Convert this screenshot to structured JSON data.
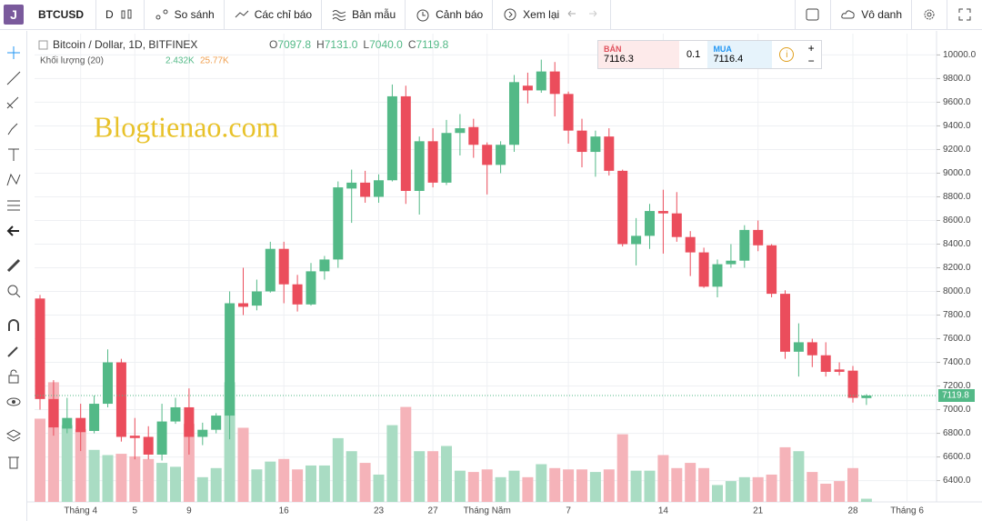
{
  "toolbar": {
    "logo": "J",
    "symbol": "BTCUSD",
    "interval": "D",
    "compare": "So sánh",
    "indicators": "Các chỉ báo",
    "templates": "Bản mẫu",
    "alerts": "Cảnh báo",
    "replay": "Xem lại",
    "user": "Vô danh"
  },
  "watermark": "Blogtienao.com",
  "order_panel": {
    "sell_label": "BÁN",
    "sell_price": "7116.3",
    "spread": "0.1",
    "buy_label": "MUA",
    "buy_price": "7116.4",
    "info": "i"
  },
  "chart_data": {
    "type": "candlestick",
    "title": "Bitcoin / Dollar, 1D, BITFINEX",
    "legend_values": [
      {
        "letter": "O",
        "label": "7097.8"
      },
      {
        "letter": "H",
        "label": "7131.0"
      },
      {
        "letter": "L",
        "label": "7040.0"
      },
      {
        "letter": "C",
        "label": "7119.8"
      }
    ],
    "categories": [
      null,
      null,
      null,
      "Tháng 4",
      null,
      null,
      null,
      "5",
      null,
      null,
      null,
      "9",
      null,
      null,
      null,
      null,
      null,
      null,
      "16",
      null,
      null,
      null,
      null,
      null,
      null,
      "23",
      null,
      null,
      null,
      "27",
      null,
      null,
      null,
      "Tháng Năm",
      null,
      null,
      null,
      null,
      null,
      "7",
      null,
      null,
      null,
      null,
      null,
      null,
      "14",
      null,
      null,
      null,
      null,
      null,
      null,
      "21",
      null,
      null,
      null,
      null,
      null,
      null,
      "28",
      null,
      null,
      null,
      "Tháng 6"
    ],
    "open": [
      7940,
      7090,
      6840,
      6930,
      6820,
      7050,
      7400,
      6780,
      6770,
      6620,
      6900,
      7020,
      6770,
      6830,
      6950,
      7900,
      7880,
      8000,
      8360,
      8060,
      7890,
      8170,
      8270,
      8870,
      8920,
      8800,
      8940,
      9650,
      8850,
      9270,
      8920,
      9340,
      9390,
      9240,
      9070,
      9240,
      9740,
      9700,
      9860,
      9670,
      9360,
      9180,
      9310,
      9020,
      8400,
      8470,
      8680,
      8660,
      8460,
      8330,
      8040,
      8230,
      8260,
      8520,
      8390,
      7980,
      7490,
      7570,
      7460,
      7340,
      7330,
      7097.8,
      null,
      null,
      null
    ],
    "high": [
      7970,
      7250,
      7100,
      7050,
      7120,
      7510,
      7430,
      6930,
      6860,
      7050,
      7100,
      7180,
      6890,
      6970,
      8000,
      8200,
      8100,
      8420,
      8420,
      8140,
      8240,
      8300,
      8930,
      9030,
      9020,
      8990,
      9750,
      9740,
      9310,
      9380,
      9450,
      9500,
      9460,
      9260,
      9270,
      9830,
      9850,
      9960,
      9940,
      9690,
      9460,
      9360,
      9380,
      9030,
      8620,
      8740,
      8860,
      8840,
      8510,
      8370,
      8270,
      8400,
      8560,
      8600,
      8400,
      8010,
      7730,
      7600,
      7570,
      7400,
      7370,
      7131.0,
      null,
      null,
      null
    ],
    "low": [
      7000,
      6780,
      6800,
      6650,
      6800,
      7020,
      6730,
      6580,
      6580,
      6570,
      6880,
      6620,
      6700,
      6800,
      6750,
      7800,
      7840,
      7990,
      7900,
      7830,
      7880,
      8100,
      8200,
      8580,
      8750,
      8750,
      8930,
      8740,
      8650,
      8880,
      8900,
      9150,
      9130,
      8820,
      9000,
      9180,
      9590,
      9680,
      9480,
      9250,
      9050,
      8970,
      8980,
      8380,
      8220,
      8360,
      8320,
      8420,
      8130,
      8030,
      7950,
      8200,
      8200,
      8340,
      7950,
      7430,
      7280,
      7360,
      7280,
      7290,
      7060,
      7040.0,
      null,
      null,
      null
    ],
    "close": [
      7090,
      6850,
      6930,
      6810,
      7050,
      7400,
      6770,
      6760,
      6620,
      6900,
      7020,
      6770,
      6830,
      6950,
      7900,
      7870,
      8000,
      8360,
      8060,
      7890,
      8170,
      8270,
      8880,
      8920,
      8800,
      8940,
      9650,
      8850,
      9270,
      8920,
      9340,
      9380,
      9240,
      9070,
      9240,
      9770,
      9700,
      9860,
      9670,
      9360,
      9180,
      9310,
      9020,
      8400,
      8470,
      8680,
      8660,
      8460,
      8330,
      8040,
      8230,
      8260,
      8520,
      8390,
      7980,
      7490,
      7570,
      7460,
      7320,
      7320,
      7100,
      7119.8,
      null,
      null,
      null
    ],
    "up_color": "#53b987",
    "down_color": "#eb4d5c",
    "ylim": [
      6220,
      10180
    ],
    "yticks": [
      {
        "value": 6400,
        "label": "6400.0"
      },
      {
        "value": 6600,
        "label": "6600.0"
      },
      {
        "value": 6800,
        "label": "6800.0"
      },
      {
        "value": 7000,
        "label": "7000.0"
      },
      {
        "value": 7200,
        "label": "7200.0"
      },
      {
        "value": 7400,
        "label": "7400.0"
      },
      {
        "value": 7600,
        "label": "7600.0"
      },
      {
        "value": 7800,
        "label": "7800.0"
      },
      {
        "value": 8000,
        "label": "8000.0"
      },
      {
        "value": 8200,
        "label": "8200.0"
      },
      {
        "value": 8400,
        "label": "8400.0"
      },
      {
        "value": 8600,
        "label": "8600.0"
      },
      {
        "value": 8800,
        "label": "8800.0"
      },
      {
        "value": 9000,
        "label": "9000.0"
      },
      {
        "value": 9200,
        "label": "9200.0"
      },
      {
        "value": 9400,
        "label": "9400.0"
      },
      {
        "value": 9600,
        "label": "9600.0"
      },
      {
        "value": 9800,
        "label": "9800.0"
      },
      {
        "value": 10000,
        "label": "10000.0"
      }
    ],
    "grid": true,
    "volume": {
      "name": "Khối lượng (20)",
      "last_label": "2.432K",
      "ma_label": "25.77K",
      "ylim": [
        0,
        360
      ],
      "up_color": "#a9dcc3",
      "down_color": "#f5b3b9",
      "values": [
        64,
        92,
        59,
        56,
        40,
        36,
        37,
        35,
        33,
        30,
        27,
        60,
        19,
        26,
        92,
        57,
        25,
        31,
        33,
        25,
        28,
        28,
        49,
        39,
        30,
        21,
        59,
        73,
        39,
        39,
        43,
        24,
        23,
        25,
        19,
        24,
        19,
        29,
        26,
        25,
        25,
        23,
        25,
        52,
        24,
        24,
        36,
        26,
        30,
        26,
        13,
        16,
        19,
        19,
        21,
        42,
        39,
        23,
        14,
        16,
        26,
        2.432,
        null,
        null,
        null
      ]
    }
  }
}
